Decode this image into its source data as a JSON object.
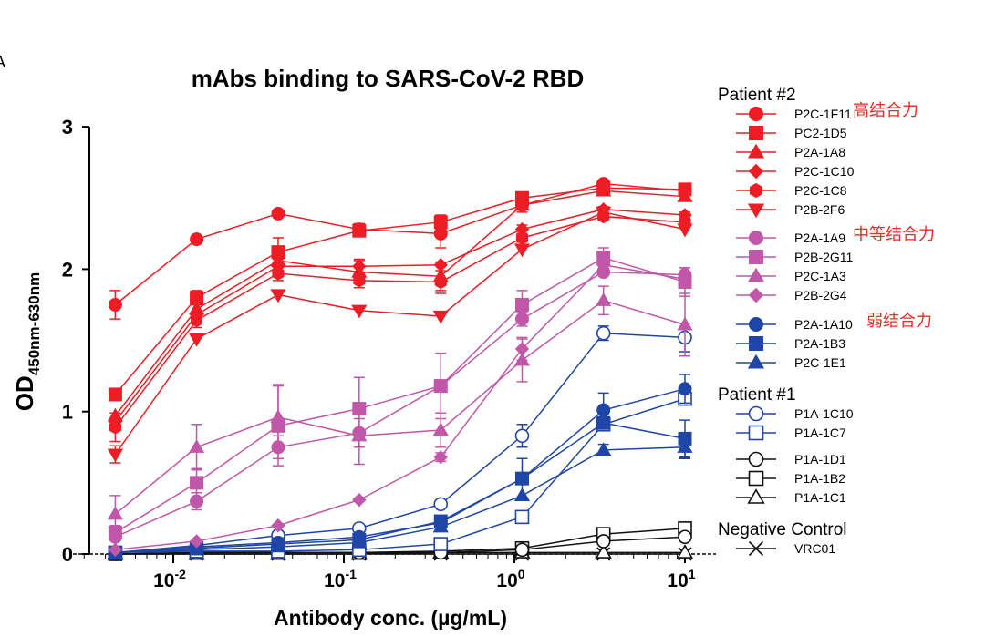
{
  "panel_label": "A",
  "chart_data": {
    "type": "line",
    "title": "mAbs binding to SARS-CoV-2 RBD",
    "xlabel": "Antibody conc. (µg/mL)",
    "ylabel_main": "OD",
    "ylabel_sub": "450nm-630nm",
    "xscale": "log",
    "xlim": [
      0.003,
      13
    ],
    "ylim": [
      0,
      3
    ],
    "yticks": [
      0,
      1,
      2,
      3
    ],
    "xticks": [
      {
        "value": 0.01,
        "base": "10",
        "exp": "-2"
      },
      {
        "value": 0.1,
        "base": "10",
        "exp": "-1"
      },
      {
        "value": 1,
        "base": "10",
        "exp": "0"
      },
      {
        "value": 10,
        "base": "10",
        "exp": "1"
      }
    ],
    "grid": false,
    "legend_placement": "right",
    "x": [
      0.00457,
      0.0137,
      0.0412,
      0.123,
      0.37,
      1.11,
      3.33,
      10
    ],
    "colors": {
      "high": "#ee1c24",
      "medium": "#c157a8",
      "weak": "#1f46a6",
      "control": "#111111"
    },
    "groups": [
      {
        "title": "Patient #2",
        "series": [
          {
            "name": "P2C-1F11",
            "marker": "circle",
            "filled": true,
            "color": "high",
            "annotation": "高结合力",
            "values": [
              1.75,
              2.21,
              2.39,
              2.28,
              2.25,
              2.45,
              2.6,
              2.55
            ],
            "err": [
              0.1,
              0,
              0,
              0.04,
              0.1,
              0.05,
              0.02,
              0.02
            ]
          },
          {
            "name": "PC2-1D5",
            "marker": "square",
            "filled": true,
            "color": "high",
            "values": [
              1.12,
              1.8,
              2.12,
              2.27,
              2.33,
              2.5,
              2.57,
              2.56
            ],
            "err": [
              0,
              0.05,
              0.1,
              0.03,
              0.05,
              0.04,
              0.02,
              0.02
            ]
          },
          {
            "name": "P2A-1A8",
            "marker": "triangle",
            "filled": true,
            "color": "high",
            "values": [
              0.97,
              1.72,
              2.06,
              1.98,
              1.95,
              2.45,
              2.55,
              2.51
            ],
            "err": [
              0,
              0.05,
              0.1,
              0.08,
              0.1,
              0.03,
              0.02,
              0.03
            ]
          },
          {
            "name": "P2C-1C10",
            "marker": "diamond",
            "filled": true,
            "color": "high",
            "values": [
              0.93,
              1.68,
              2.02,
              2.02,
              2.03,
              2.28,
              2.42,
              2.38
            ],
            "err": [
              0,
              0,
              0.05,
              0.05,
              0,
              0.03,
              0.02,
              0.02
            ]
          },
          {
            "name": "P2C-1C8",
            "marker": "hexagon",
            "filled": true,
            "color": "high",
            "values": [
              0.89,
              1.64,
              1.97,
              1.92,
              1.91,
              2.22,
              2.37,
              2.33
            ],
            "err": [
              0.1,
              0.05,
              0.05,
              0.05,
              0.08,
              0.03,
              0.02,
              0.02
            ]
          },
          {
            "name": "P2B-2F6",
            "marker": "triangle-down",
            "filled": true,
            "color": "high",
            "values": [
              0.7,
              1.51,
              1.82,
              1.71,
              1.67,
              2.14,
              2.4,
              2.28
            ],
            "err": [
              0.06,
              0,
              0,
              0,
              0,
              0,
              0,
              0
            ]
          },
          {
            "name": "P2A-1A9",
            "marker": "circle",
            "filled": true,
            "color": "medium",
            "annotation": "中等结合力",
            "values": [
              0.12,
              0.37,
              0.75,
              0.85,
              1.18,
              1.65,
              1.98,
              1.96
            ],
            "err": [
              0,
              0.06,
              0.08,
              0.1,
              0,
              0.05,
              0,
              0.05
            ]
          },
          {
            "name": "P2B-2G11",
            "marker": "square",
            "filled": true,
            "color": "medium",
            "values": [
              0.15,
              0.5,
              0.9,
              1.02,
              1.18,
              1.75,
              2.08,
              1.91
            ],
            "err": [
              0.05,
              0.1,
              0.28,
              0.22,
              0.23,
              0.1,
              0.07,
              0.1
            ]
          },
          {
            "name": "P2C-1A3",
            "marker": "triangle",
            "filled": true,
            "color": "medium",
            "values": [
              0.28,
              0.75,
              0.96,
              0.83,
              0.87,
              1.36,
              1.78,
              1.61
            ],
            "err": [
              0.13,
              0.16,
              0.23,
              0.2,
              0.12,
              0.15,
              0.1,
              0.22
            ]
          },
          {
            "name": "P2B-2G4",
            "marker": "diamond",
            "filled": true,
            "color": "medium",
            "values": [
              0.03,
              0.09,
              0.2,
              0.38,
              0.68,
              1.44,
              2.03,
              1.93
            ],
            "err": [
              0,
              0,
              0,
              0,
              0.03,
              0.08,
              0,
              0
            ]
          },
          {
            "name": "P2A-1A10",
            "marker": "circle",
            "filled": true,
            "color": "weak",
            "annotation": "弱结合力",
            "values": [
              0.01,
              0.05,
              0.08,
              0.12,
              0.22,
              0.53,
              1.01,
              1.16
            ],
            "err": [
              0,
              0,
              0,
              0,
              0,
              0.14,
              0.12,
              0.1
            ]
          },
          {
            "name": "P2A-1B3",
            "marker": "square",
            "filled": true,
            "color": "weak",
            "values": [
              0.01,
              0.04,
              0.07,
              0.1,
              0.23,
              0.53,
              0.92,
              0.81
            ],
            "err": [
              0,
              0,
              0,
              0,
              0,
              0,
              0.04,
              0.13
            ]
          },
          {
            "name": "P2C-1E1",
            "marker": "triangle",
            "filled": true,
            "color": "weak",
            "values": [
              0.01,
              0.03,
              0.05,
              0.08,
              0.19,
              0.41,
              0.73,
              0.75
            ],
            "err": [
              0,
              0,
              0,
              0,
              0,
              0,
              0.04,
              0.08
            ]
          }
        ]
      },
      {
        "title": "Patient #1",
        "series": [
          {
            "name": "P1A-1C10",
            "marker": "circle",
            "filled": false,
            "color": "weak",
            "values": [
              0.01,
              0.06,
              0.13,
              0.18,
              0.35,
              0.83,
              1.55,
              1.52
            ],
            "err": [
              0,
              0,
              0,
              0,
              0,
              0.08,
              0.05,
              0.1
            ]
          },
          {
            "name": "P1A-1C7",
            "marker": "square",
            "filled": false,
            "color": "weak",
            "values": [
              0.01,
              0.02,
              0.02,
              0.03,
              0.07,
              0.26,
              0.91,
              1.09
            ],
            "err": [
              0,
              0,
              0,
              0,
              0,
              0,
              0,
              0
            ]
          },
          {
            "name": "P1A-1D1",
            "marker": "circle",
            "filled": false,
            "color": "control",
            "values": [
              0.0,
              0.01,
              0.01,
              0.01,
              0.01,
              0.03,
              0.09,
              0.12
            ],
            "err": [
              0,
              0,
              0,
              0,
              0,
              0,
              0,
              0
            ]
          },
          {
            "name": "P1A-1B2",
            "marker": "square",
            "filled": false,
            "color": "control",
            "values": [
              0.0,
              0.01,
              0.01,
              0.01,
              0.02,
              0.04,
              0.14,
              0.18
            ],
            "err": [
              0,
              0,
              0,
              0,
              0,
              0,
              0,
              0
            ]
          },
          {
            "name": "P1A-1C1",
            "marker": "triangle",
            "filled": false,
            "color": "control",
            "values": [
              0.0,
              0.0,
              0.0,
              0.0,
              0.01,
              0.01,
              0.01,
              0.01
            ],
            "err": [
              0,
              0,
              0,
              0,
              0,
              0,
              0,
              0
            ]
          }
        ]
      },
      {
        "title": "Negative Control",
        "series": [
          {
            "name": "VRC01",
            "marker": "x",
            "filled": false,
            "color": "control",
            "values": [
              0,
              0,
              0,
              0,
              0,
              0,
              0,
              0
            ],
            "err": [
              0,
              0,
              0,
              0,
              0,
              0,
              0,
              0
            ]
          }
        ]
      }
    ]
  }
}
